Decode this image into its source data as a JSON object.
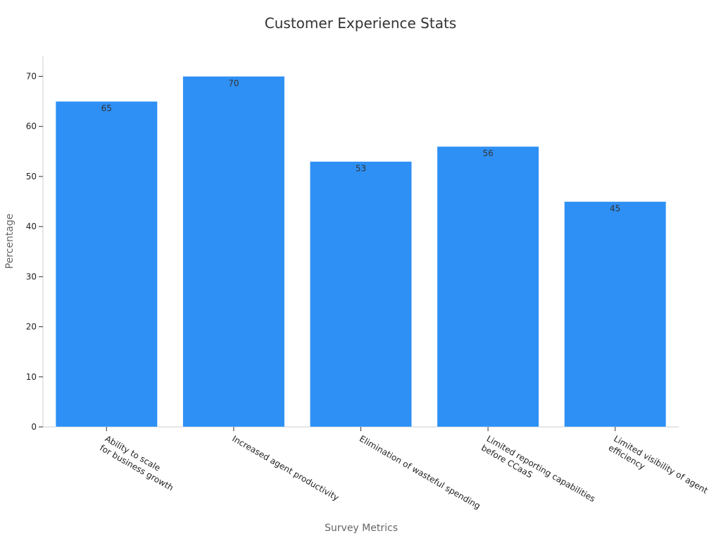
{
  "chart_data": {
    "type": "bar",
    "title": "Customer Experience Stats",
    "xlabel": "Survey Metrics",
    "ylabel": "Percentage",
    "categories": [
      [
        "Ability to scale",
        "for business growth"
      ],
      [
        "Increased agent productivity"
      ],
      [
        "Elimination of wasteful spending"
      ],
      [
        "Limited reporting capabilities",
        "before CCaaS"
      ],
      [
        "Limited visibility of agent",
        "efficiency"
      ]
    ],
    "values": [
      65,
      70,
      53,
      56,
      45
    ],
    "ylim": [
      0,
      74
    ],
    "yticks": [
      0,
      10,
      20,
      30,
      40,
      50,
      60,
      70
    ],
    "grid": false,
    "legend": "none",
    "bar_color": "#2e90f5"
  }
}
